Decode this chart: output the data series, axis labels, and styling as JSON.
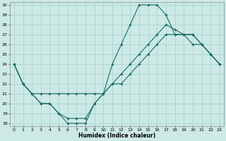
{
  "xlabel": "Humidex (Indice chaleur)",
  "bg_color": "#cce9e6",
  "grid_color": "#aad4d0",
  "line_color": "#1a6e62",
  "xlim": [
    0,
    23
  ],
  "ylim": [
    18,
    30
  ],
  "xticks": [
    0,
    1,
    2,
    3,
    4,
    5,
    6,
    7,
    8,
    9,
    10,
    11,
    12,
    13,
    14,
    15,
    16,
    17,
    18,
    19,
    20,
    21,
    22,
    23
  ],
  "yticks": [
    18,
    19,
    20,
    21,
    22,
    23,
    24,
    25,
    26,
    27,
    28,
    29,
    30
  ],
  "line1_x": [
    0,
    1,
    2,
    3,
    4,
    5,
    6,
    7,
    8,
    9,
    10,
    11,
    12,
    13,
    14,
    15,
    16,
    17,
    18,
    19,
    20,
    21,
    22,
    23
  ],
  "line1_y": [
    24,
    22,
    21,
    20,
    20,
    19,
    18,
    18,
    18,
    20,
    21,
    24,
    26,
    28,
    30,
    30,
    30,
    29,
    27,
    27,
    26,
    26,
    25,
    24
  ],
  "line2_x": [
    0,
    1,
    2,
    3,
    4,
    5,
    6,
    7,
    8,
    9,
    10,
    11,
    12,
    13,
    14,
    15,
    16,
    17,
    18,
    19,
    20,
    21,
    22,
    23
  ],
  "line2_y": [
    24,
    22,
    21,
    21,
    21,
    21,
    21,
    21,
    21,
    21,
    21,
    22,
    22,
    23,
    24,
    25,
    26,
    27,
    27,
    27,
    27,
    26,
    25,
    24
  ],
  "line3_x": [
    0,
    1,
    2,
    3,
    4,
    5,
    6,
    7,
    8,
    9,
    10,
    11,
    12,
    13,
    14,
    15,
    16,
    17,
    18,
    19,
    20,
    21,
    22,
    23
  ],
  "line3_y": [
    24,
    22,
    21,
    20,
    20,
    19,
    18.5,
    18.5,
    18.5,
    20,
    21,
    22,
    23,
    24,
    25,
    26,
    27,
    28,
    27.5,
    27,
    27,
    26,
    25,
    24
  ]
}
